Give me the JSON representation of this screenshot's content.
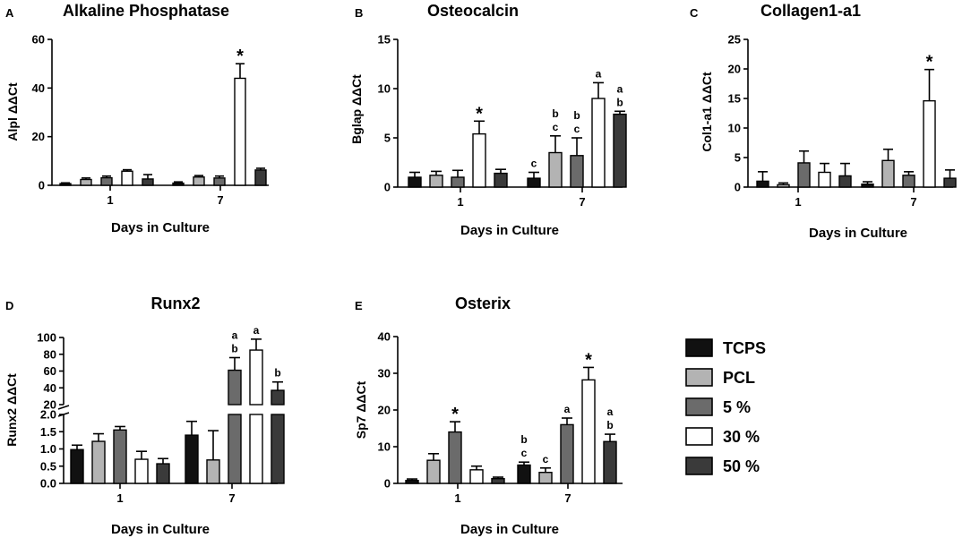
{
  "series_styles": [
    {
      "name": "TCPS",
      "color": "#111111"
    },
    {
      "name": "PCL",
      "color": "#b3b3b3"
    },
    {
      "name": "5 %",
      "color": "#6b6b6b"
    },
    {
      "name": "30 %",
      "color": "#ffffff"
    },
    {
      "name": "50 %",
      "color": "#3a3a3a"
    }
  ],
  "chart_data": [
    {
      "panel": "A",
      "type": "bar",
      "title": "Alkaline Phosphatase",
      "xlabel": "Days in Culture",
      "ylabel": "Alpl ΔΔCt",
      "categories": [
        "1",
        "7"
      ],
      "ylim": [
        0,
        60
      ],
      "yticks": [
        "0",
        "20",
        "40",
        "60"
      ],
      "series": [
        {
          "name": "TCPS",
          "values": [
            0.7,
            0.9
          ],
          "errors": [
            0.3,
            0.5
          ]
        },
        {
          "name": "PCL",
          "values": [
            2.4,
            3.4
          ],
          "errors": [
            0.6,
            0.6
          ]
        },
        {
          "name": "5 %",
          "values": [
            3.1,
            3.0
          ],
          "errors": [
            0.7,
            0.8
          ]
        },
        {
          "name": "30 %",
          "values": [
            5.8,
            44.0
          ],
          "errors": [
            0.6,
            6.0
          ]
        },
        {
          "name": "50 %",
          "values": [
            2.6,
            6.3
          ],
          "errors": [
            1.8,
            0.7
          ]
        }
      ],
      "annotations": [
        {
          "series": "30 %",
          "category": "7",
          "text": "*"
        }
      ]
    },
    {
      "panel": "B",
      "type": "bar",
      "title": "Osteocalcin",
      "xlabel": "Days in Culture",
      "ylabel": "Bglap ΔΔCt",
      "categories": [
        "1",
        "7"
      ],
      "ylim": [
        0,
        15
      ],
      "yticks": [
        "0",
        "5",
        "10",
        "15"
      ],
      "series": [
        {
          "name": "TCPS",
          "values": [
            1.0,
            0.9
          ],
          "errors": [
            0.5,
            0.6
          ]
        },
        {
          "name": "PCL",
          "values": [
            1.2,
            3.5
          ],
          "errors": [
            0.4,
            1.7
          ]
        },
        {
          "name": "5 %",
          "values": [
            1.0,
            3.2
          ],
          "errors": [
            0.7,
            1.8
          ]
        },
        {
          "name": "30 %",
          "values": [
            5.4,
            9.0
          ],
          "errors": [
            1.3,
            1.6
          ]
        },
        {
          "name": "50 %",
          "values": [
            1.4,
            7.4
          ],
          "errors": [
            0.4,
            0.3
          ]
        }
      ],
      "annotations": [
        {
          "series": "30 %",
          "category": "1",
          "text": "*"
        },
        {
          "series": "TCPS",
          "category": "7",
          "text": "c"
        },
        {
          "series": "PCL",
          "category": "7",
          "text": "b c"
        },
        {
          "series": "5 %",
          "category": "7",
          "text": "b c"
        },
        {
          "series": "30 %",
          "category": "7",
          "text": "a"
        },
        {
          "series": "50 %",
          "category": "7",
          "text": "a b"
        }
      ]
    },
    {
      "panel": "C",
      "type": "bar",
      "title": "Collagen1-a1",
      "xlabel": "Days in Culture",
      "ylabel": "Col1-a1 ΔΔCt",
      "categories": [
        "1",
        "7"
      ],
      "ylim": [
        0,
        25
      ],
      "yticks": [
        "0",
        "5",
        "10",
        "15",
        "20",
        "25"
      ],
      "series": [
        {
          "name": "TCPS",
          "values": [
            1.0,
            0.5
          ],
          "errors": [
            1.6,
            0.4
          ]
        },
        {
          "name": "PCL",
          "values": [
            0.4,
            4.5
          ],
          "errors": [
            0.3,
            1.9
          ]
        },
        {
          "name": "5 %",
          "values": [
            4.1,
            2.0
          ],
          "errors": [
            2.0,
            0.6
          ]
        },
        {
          "name": "30 %",
          "values": [
            2.5,
            14.6
          ],
          "errors": [
            1.5,
            5.3
          ]
        },
        {
          "name": "50 %",
          "values": [
            1.9,
            1.5
          ],
          "errors": [
            2.1,
            1.4
          ]
        }
      ],
      "annotations": [
        {
          "series": "30 %",
          "category": "7",
          "text": "*"
        }
      ]
    },
    {
      "panel": "D",
      "type": "bar",
      "title": "Runx2",
      "xlabel": "Days in Culture",
      "ylabel": "Runx2 ΔΔCt",
      "categories": [
        "1",
        "7"
      ],
      "ylim_lower": [
        0,
        2.0
      ],
      "ylim_upper": [
        20,
        100
      ],
      "yticks_lower": [
        "0.0",
        "0.5",
        "1.0",
        "1.5",
        "2.0"
      ],
      "yticks_upper": [
        "20",
        "40",
        "60",
        "80",
        "100"
      ],
      "series": [
        {
          "name": "TCPS",
          "values": [
            0.98,
            1.4
          ],
          "errors": [
            0.13,
            0.4
          ]
        },
        {
          "name": "PCL",
          "values": [
            1.22,
            0.68
          ],
          "errors": [
            0.22,
            0.85
          ]
        },
        {
          "name": "5 %",
          "values": [
            1.55,
            61
          ],
          "errors": [
            0.1,
            15
          ]
        },
        {
          "name": "30 %",
          "values": [
            0.7,
            85
          ],
          "errors": [
            0.23,
            13
          ]
        },
        {
          "name": "50 %",
          "values": [
            0.57,
            37
          ],
          "errors": [
            0.15,
            10
          ]
        }
      ],
      "annotations": [
        {
          "series": "5 %",
          "category": "7",
          "text": "a b"
        },
        {
          "series": "30 %",
          "category": "7",
          "text": "a"
        },
        {
          "series": "50 %",
          "category": "7",
          "text": "b"
        }
      ]
    },
    {
      "panel": "E",
      "type": "bar",
      "title": "Osterix",
      "xlabel": "Days in Culture",
      "ylabel": "Sp7 ΔΔCt",
      "categories": [
        "1",
        "7"
      ],
      "ylim": [
        0,
        40
      ],
      "yticks": [
        "0",
        "10",
        "20",
        "30",
        "40"
      ],
      "series": [
        {
          "name": "TCPS",
          "values": [
            0.8,
            5.0
          ],
          "errors": [
            0.4,
            0.8
          ]
        },
        {
          "name": "PCL",
          "values": [
            6.3,
            3.0
          ],
          "errors": [
            1.8,
            1.2
          ]
        },
        {
          "name": "5 %",
          "values": [
            14.0,
            16.0
          ],
          "errors": [
            2.8,
            1.8
          ]
        },
        {
          "name": "30 %",
          "values": [
            3.7,
            28.2
          ],
          "errors": [
            1.0,
            3.4
          ]
        },
        {
          "name": "50 %",
          "values": [
            1.3,
            11.4
          ],
          "errors": [
            0.4,
            2.0
          ]
        }
      ],
      "annotations": [
        {
          "series": "5 %",
          "category": "1",
          "text": "*"
        },
        {
          "series": "TCPS",
          "category": "7",
          "text": "b c"
        },
        {
          "series": "PCL",
          "category": "7",
          "text": "c"
        },
        {
          "series": "5 %",
          "category": "7",
          "text": "a"
        },
        {
          "series": "30 %",
          "category": "7",
          "text": "*"
        },
        {
          "series": "50 %",
          "category": "7",
          "text": "a b"
        }
      ]
    }
  ]
}
